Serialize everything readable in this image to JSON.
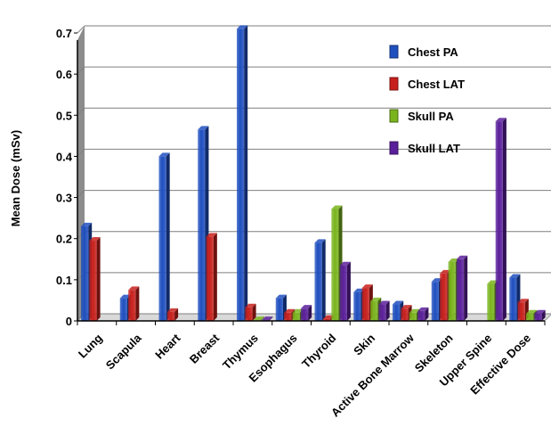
{
  "chart_data": {
    "type": "bar",
    "ylabel": "Mean Dose (mSv)",
    "ylim": [
      0,
      0.7
    ],
    "yticks": [
      "0",
      "0.1",
      "0.2",
      "0.3",
      "0.4",
      "0.5",
      "0.6",
      "0.7"
    ],
    "grid": true,
    "legend_position": "top-right",
    "categories": [
      "Lung",
      "Scapula",
      "Heart",
      "Breast",
      "Thymus",
      "Esophagus",
      "Thyroid",
      "Skin",
      "Active Bone Marrow",
      "Skeleton",
      "Upper Spine",
      "Effective Dose"
    ],
    "series": [
      {
        "name": "Chest PA",
        "color": "#1f4fbf",
        "values": [
          0.23,
          0.055,
          0.4,
          0.465,
          0.71,
          0.055,
          0.19,
          0.07,
          0.04,
          0.095,
          0.0,
          0.105
        ]
      },
      {
        "name": "Chest LAT",
        "color": "#c8201c",
        "values": [
          0.195,
          0.075,
          0.022,
          0.205,
          0.033,
          0.02,
          0.005,
          0.08,
          0.03,
          0.115,
          0.0,
          0.045
        ]
      },
      {
        "name": "Skull PA",
        "color": "#7ab41d",
        "values": [
          0.0,
          0.0,
          0.0,
          0.0,
          0.002,
          0.02,
          0.272,
          0.048,
          0.02,
          0.143,
          0.09,
          0.018
        ]
      },
      {
        "name": "Skull LAT",
        "color": "#5a1f9a",
        "values": [
          0.0,
          0.0,
          0.0,
          0.0,
          0.002,
          0.03,
          0.135,
          0.04,
          0.024,
          0.15,
          0.485,
          0.018
        ]
      }
    ]
  }
}
